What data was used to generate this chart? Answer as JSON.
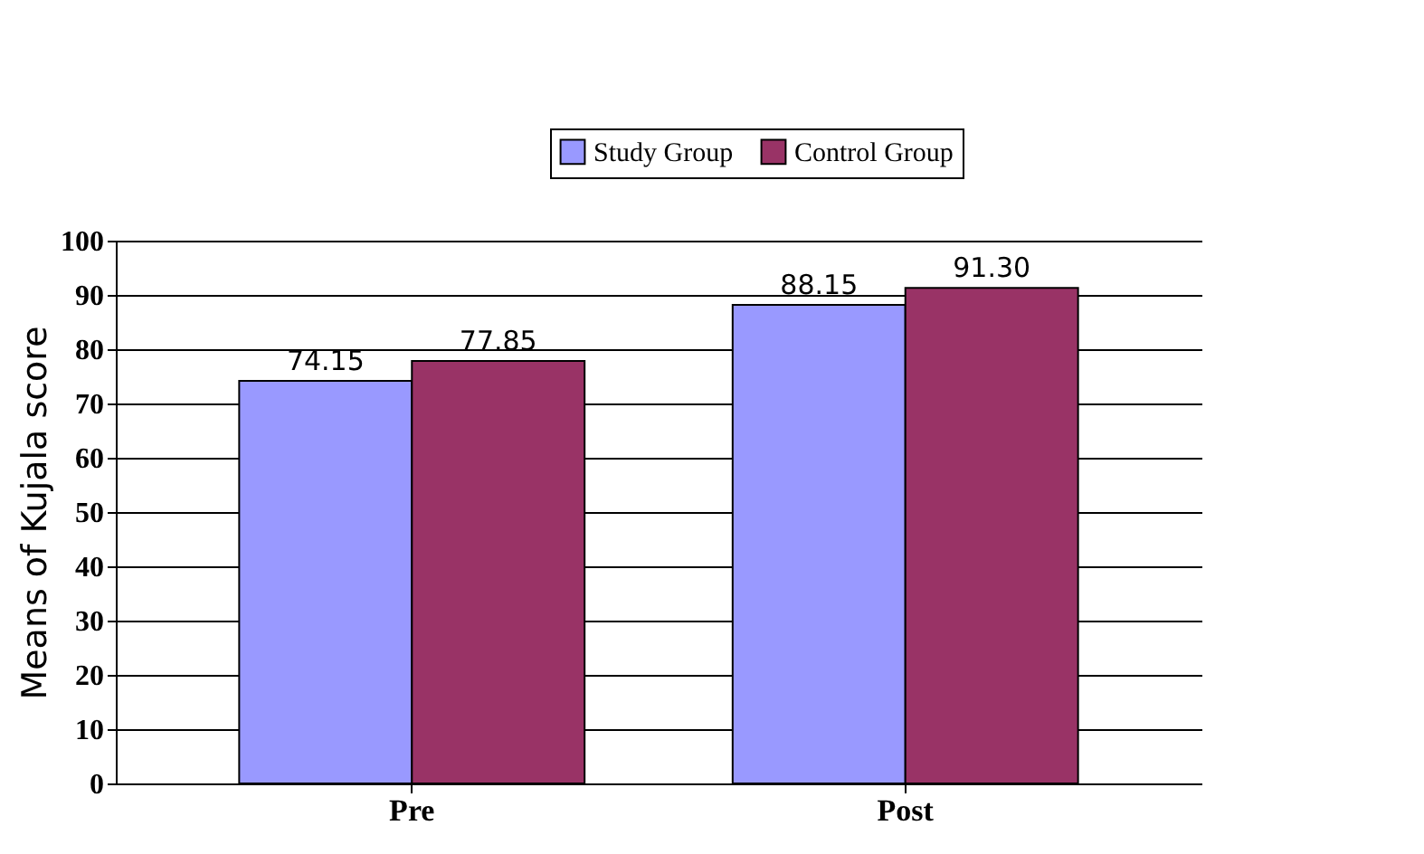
{
  "chart_data": {
    "type": "bar",
    "ylabel": "Means of Kujala score",
    "categories": [
      "Pre",
      "Post"
    ],
    "series": [
      {
        "name": "Study Group",
        "color": "#9999ff",
        "values": [
          74.15,
          88.15
        ],
        "value_labels": [
          "74.15",
          "88.15"
        ]
      },
      {
        "name": "Control Group",
        "color": "#993366",
        "values": [
          77.85,
          91.3
        ],
        "value_labels": [
          "77.85",
          "91.30"
        ]
      }
    ],
    "ylim": [
      0,
      100
    ],
    "yticks": [
      0,
      10,
      20,
      30,
      40,
      50,
      60,
      70,
      80,
      90,
      100
    ],
    "grid": "y",
    "legend": "top right"
  }
}
